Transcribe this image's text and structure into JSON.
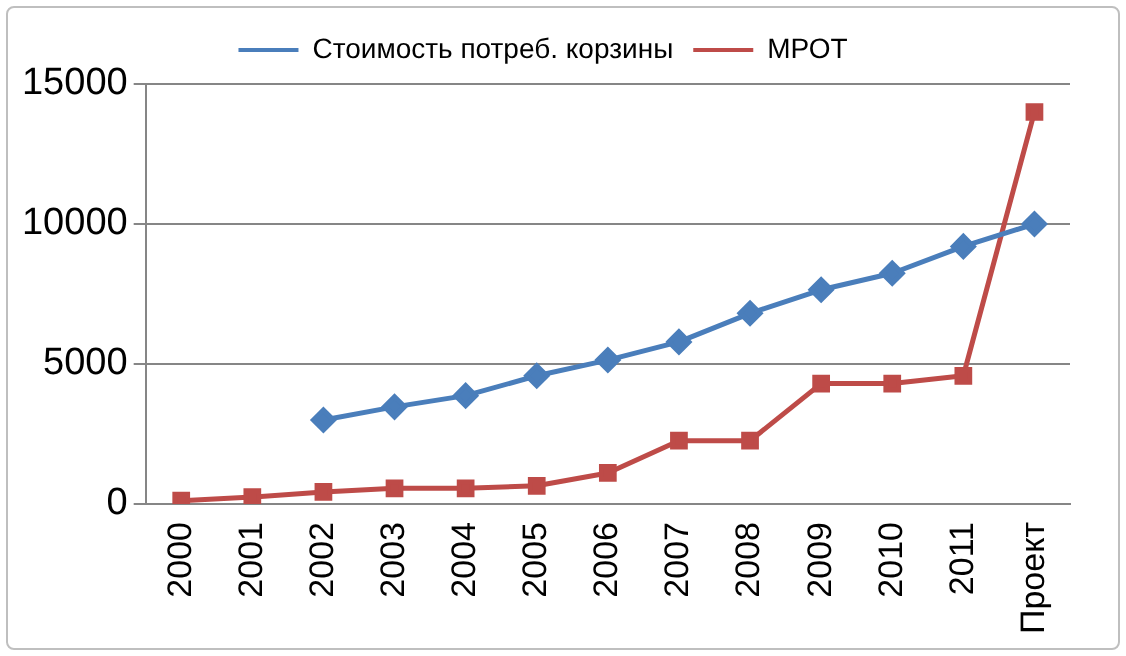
{
  "chart_data": {
    "type": "line",
    "categories": [
      "2000",
      "2001",
      "2002",
      "2003",
      "2004",
      "2005",
      "2006",
      "2007",
      "2008",
      "2009",
      "2010",
      "2011",
      "Проект"
    ],
    "series": [
      {
        "name": "Стоимость потреб. корзины",
        "color": "#4a7ebb",
        "marker": "diamond",
        "values": [
          null,
          null,
          3000,
          3470,
          3870,
          4580,
          5140,
          5790,
          6810,
          7650,
          8240,
          9200,
          10000
        ]
      },
      {
        "name": "МРОТ",
        "color": "#be4b48",
        "marker": "square",
        "values": [
          120,
          250,
          430,
          560,
          560,
          650,
          1110,
          2260,
          2260,
          4300,
          4300,
          4580,
          14000
        ]
      }
    ],
    "ylim": [
      0,
      15000
    ],
    "yticks": [
      0,
      5000,
      10000,
      15000
    ],
    "grid": "y",
    "legend": "top",
    "line_style": "solid"
  }
}
